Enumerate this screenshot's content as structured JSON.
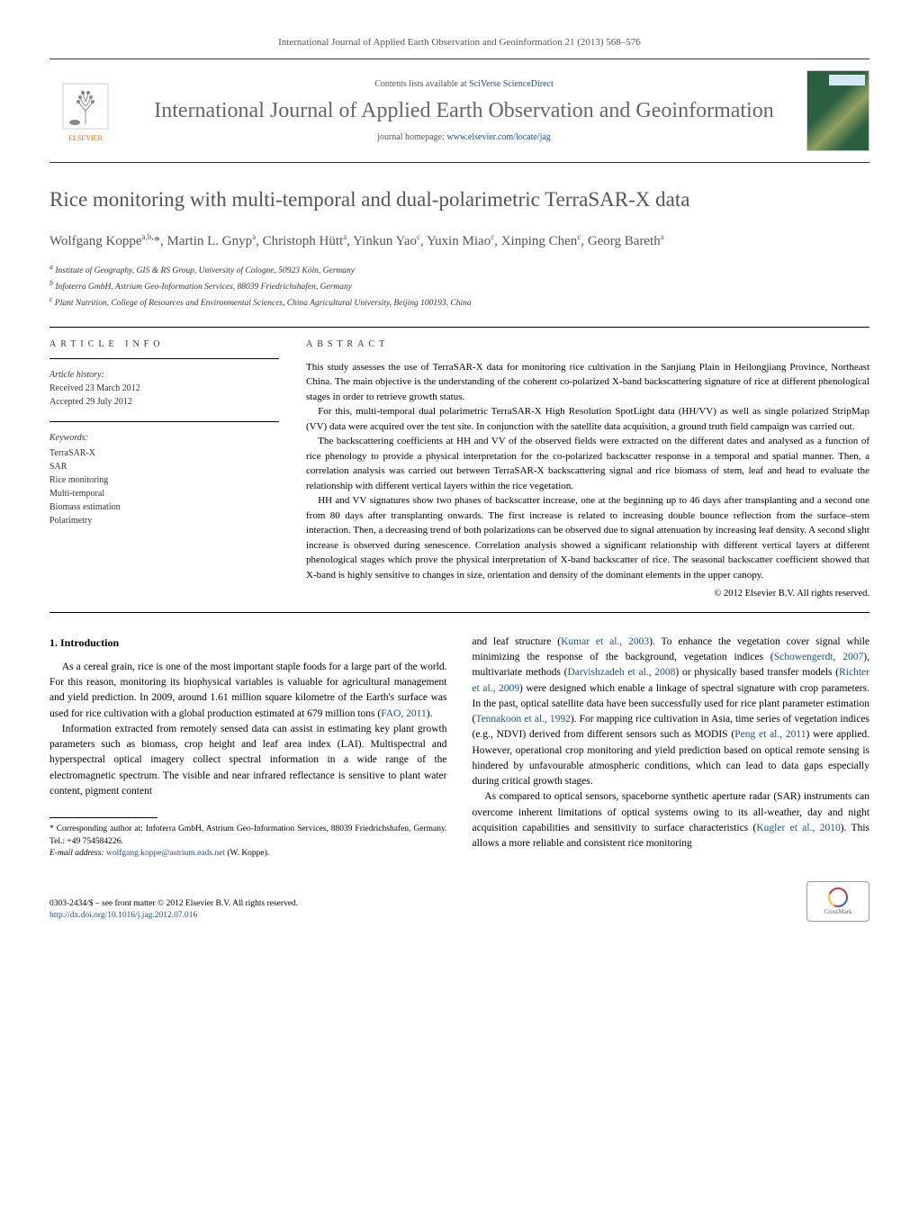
{
  "journal_ref": "International Journal of Applied Earth Observation and Geoinformation 21 (2013) 568–576",
  "header": {
    "contents_line_prefix": "Contents lists available at ",
    "contents_link": "SciVerse ScienceDirect",
    "journal_title": "International Journal of Applied Earth Observation and Geoinformation",
    "homepage_prefix": "journal homepage: ",
    "homepage_url": "www.elsevier.com/locate/jag",
    "publisher_name": "ELSEVIER"
  },
  "article": {
    "title": "Rice monitoring with multi-temporal and dual-polarimetric TerraSAR-X data",
    "authors_html": "Wolfgang Koppe<sup>a,b,</sup>*, Martin L. Gnyp<sup>a</sup>, Christoph Hütt<sup>a</sup>, Yinkun Yao<sup>c</sup>, Yuxin Miao<sup>c</sup>, Xinping Chen<sup>c</sup>, Georg Bareth<sup>a</sup>",
    "affiliations": [
      "a Institute of Geography, GIS & RS Group, University of Cologne, 50923 Köln, Germany",
      "b Infoterra GmbH, Astrium Geo-Information Services, 88039 Friedrichshafen, Germany",
      "c Plant Nutrition, College of Resources and Environmental Sciences, China Agricultural University, Beijing 100193, China"
    ]
  },
  "info": {
    "label": "ARTICLE INFO",
    "history_label": "Article history:",
    "received": "Received 23 March 2012",
    "accepted": "Accepted 29 July 2012",
    "keywords_label": "Keywords:",
    "keywords": [
      "TerraSAR-X",
      "SAR",
      "Rice monitoring",
      "Multi-temporal",
      "Biomass estimation",
      "Polarimetry"
    ]
  },
  "abstract": {
    "label": "ABSTRACT",
    "paragraphs": [
      "This study assesses the use of TerraSAR-X data for monitoring rice cultivation in the Sanjiang Plain in Heilongjiang Province, Northeast China. The main objective is the understanding of the coherent co-polarized X-band backscattering signature of rice at different phenological stages in order to retrieve growth status.",
      "For this, multi-temporal dual polarimetric TerraSAR-X High Resolution SpotLight data (HH/VV) as well as single polarized StripMap (VV) data were acquired over the test site. In conjunction with the satellite data acquisition, a ground truth field campaign was carried out.",
      "The backscattering coefficients at HH and VV of the observed fields were extracted on the different dates and analysed as a function of rice phenology to provide a physical interpretation for the co-polarized backscatter response in a temporal and spatial manner. Then, a correlation analysis was carried out between TerraSAR-X backscattering signal and rice biomass of stem, leaf and head to evaluate the relationship with different vertical layers within the rice vegetation.",
      "HH and VV signatures show two phases of backscatter increase, one at the beginning up to 46 days after transplanting and a second one from 80 days after transplanting onwards. The first increase is related to increasing double bounce reflection from the surface–stem interaction. Then, a decreasing trend of both polarizations can be observed due to signal attenuation by increasing leaf density. A second slight increase is observed during senescence. Correlation analysis showed a significant relationship with different vertical layers at different phenological stages which prove the physical interpretation of X-band backscatter of rice. The seasonal backscatter coefficient showed that X-band is highly sensitive to changes in size, orientation and density of the dominant elements in the upper canopy."
    ],
    "copyright": "© 2012 Elsevier B.V. All rights reserved."
  },
  "body": {
    "section_number": "1.",
    "section_title": "Introduction",
    "left_paragraphs": [
      "As a cereal grain, rice is one of the most important staple foods for a large part of the world. For this reason, monitoring its biophysical variables is valuable for agricultural management and yield prediction. In 2009, around 1.61 million square kilometre of the Earth's surface was used for rice cultivation with a global production estimated at 679 million tons (<span class=\"link\">FAO, 2011</span>).",
      "Information extracted from remotely sensed data can assist in estimating key plant growth parameters such as biomass, crop height and leaf area index (LAI). Multispectral and hyperspectral optical imagery collect spectral information in a wide range of the electromagnetic spectrum. The visible and near infrared reflectance is sensitive to plant water content, pigment content"
    ],
    "right_paragraphs": [
      "and leaf structure (<span class=\"link\">Kumar et al., 2003</span>). To enhance the vegetation cover signal while minimizing the response of the background, vegetation indices (<span class=\"link\">Schowengerdt, 2007</span>), multivariate methods (<span class=\"link\">Darvishzadeh et al., 2008</span>) or physically based transfer models (<span class=\"link\">Richter et al., 2009</span>) were designed which enable a linkage of spectral signature with crop parameters. In the past, optical satellite data have been successfully used for rice plant parameter estimation (<span class=\"link\">Tennakoon et al., 1992</span>). For mapping rice cultivation in Asia, time series of vegetation indices (e.g., NDVI) derived from different sensors such as MODIS (<span class=\"link\">Peng et al., 2011</span>) were applied. However, operational crop monitoring and yield prediction based on optical remote sensing is hindered by unfavourable atmospheric conditions, which can lead to data gaps especially during critical growth stages.",
      "As compared to optical sensors, spaceborne synthetic aperture radar (SAR) instruments can overcome inherent limitations of optical systems owing to its all-weather, day and night acquisition capabilities and sensitivity to surface characteristics (<span class=\"link\">Kugler et al., 2010</span>). This allows a more reliable and consistent rice monitoring"
    ]
  },
  "footnote": {
    "corr_label": "* Corresponding author at: Infoterra GmbH, Astrium Geo-Information Services, 88039 Friedrichshafen, Germany. Tel.: +49 754584226.",
    "email_label": "E-mail address:",
    "email": "wolfgang.koppe@astrium.eads.net",
    "email_suffix": "(W. Koppe)."
  },
  "footer": {
    "issn_line": "0303-2434/$ – see front matter © 2012 Elsevier B.V. All rights reserved.",
    "doi_url": "http://dx.doi.org/10.1016/j.jag.2012.07.016",
    "crossmark_label": "CrossMark"
  },
  "colors": {
    "link": "#1a4f8f",
    "elsevier_orange": "#ff6600",
    "title_gray": "#555555"
  }
}
